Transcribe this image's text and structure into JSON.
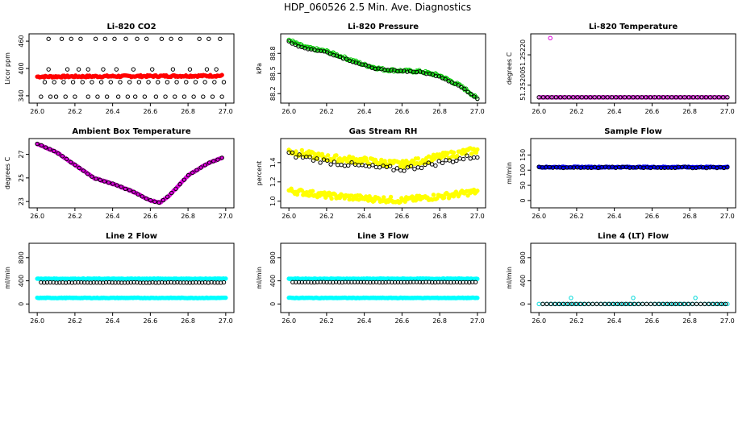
{
  "page": {
    "title": "HDP_060526  2.5 Min. Ave. Diagnostics"
  },
  "chart_data": [
    {
      "id": "co2",
      "type": "scatter",
      "title": "Li-820 CO2",
      "ylabel": "Licor ppm",
      "xlim": [
        26.0,
        27.0
      ],
      "ylim": [
        330,
        470
      ],
      "x_ticks": [
        "26.0",
        "26.2",
        "26.4",
        "26.6",
        "26.8",
        "27.0"
      ],
      "y_ticks": [
        {
          "v": 340,
          "label": "340"
        },
        {
          "v": 400,
          "label": "400"
        },
        {
          "v": 460,
          "label": "460"
        }
      ],
      "series": [
        {
          "name": "red",
          "color": "#ff0000",
          "filled": true,
          "kind": "flat",
          "from": 26.0,
          "to": 26.98,
          "y0": 382,
          "y1": 384,
          "noise": 2,
          "n": 160
        },
        {
          "name": "black",
          "color": "#000000",
          "filled": false,
          "kind": "points",
          "x": [
            26.02,
            26.07,
            26.1,
            26.15,
            26.2,
            26.27,
            26.32,
            26.37,
            26.43,
            26.48,
            26.52,
            26.57,
            26.63,
            26.68,
            26.73,
            26.78,
            26.83,
            26.88,
            26.93,
            26.98,
            26.04,
            26.09,
            26.14,
            26.19,
            26.24,
            26.29,
            26.34,
            26.39,
            26.44,
            26.49,
            26.54,
            26.59,
            26.64,
            26.69,
            26.74,
            26.79,
            26.84,
            26.89,
            26.94,
            26.99,
            26.06,
            26.13,
            26.18,
            26.23,
            26.31,
            26.36,
            26.41,
            26.47,
            26.53,
            26.58,
            26.66,
            26.71,
            26.76,
            26.86,
            26.91,
            26.97
          ],
          "y": [
            338,
            338,
            338,
            338,
            338,
            338,
            338,
            338,
            338,
            338,
            338,
            338,
            338,
            338,
            338,
            338,
            338,
            338,
            338,
            338,
            370,
            370,
            370,
            370,
            370,
            370,
            370,
            370,
            370,
            370,
            370,
            370,
            370,
            370,
            370,
            370,
            370,
            370,
            370,
            370,
            465,
            465,
            465,
            465,
            465,
            465,
            465,
            465,
            465,
            465,
            465,
            465,
            465,
            465,
            465,
            465
          ]
        },
        {
          "name": "black-mid",
          "color": "#000000",
          "filled": false,
          "kind": "points",
          "x": [
            26.06,
            26.16,
            26.22,
            26.27,
            26.35,
            26.42,
            26.51,
            26.61,
            26.72,
            26.81,
            26.9,
            26.95
          ],
          "y": [
            398,
            398,
            398,
            398,
            398,
            398,
            398,
            398,
            398,
            398,
            398,
            398
          ]
        }
      ]
    },
    {
      "id": "pressure",
      "type": "scatter",
      "title": "Li-820 Pressure",
      "ylabel": "kPa",
      "xlim": [
        26.0,
        27.0
      ],
      "ylim": [
        88.1,
        89.05
      ],
      "x_ticks": [
        "26.0",
        "26.2",
        "26.4",
        "26.6",
        "26.8",
        "27.0"
      ],
      "y_ticks": [
        {
          "v": 88.2,
          "label": "88.2"
        },
        {
          "v": 88.5,
          "label": "88.5"
        },
        {
          "v": 88.8,
          "label": "88.8"
        }
      ],
      "series": [
        {
          "name": "green",
          "color": "#00cc00",
          "filled": false,
          "kind": "curve",
          "knots": [
            [
              26.0,
              89.0
            ],
            [
              26.05,
              88.93
            ],
            [
              26.1,
              88.88
            ],
            [
              26.2,
              88.83
            ],
            [
              26.3,
              88.73
            ],
            [
              26.4,
              88.63
            ],
            [
              26.5,
              88.56
            ],
            [
              26.6,
              88.54
            ],
            [
              26.7,
              88.53
            ],
            [
              26.8,
              88.47
            ],
            [
              26.9,
              88.33
            ],
            [
              26.95,
              88.24
            ],
            [
              27.0,
              88.12
            ]
          ],
          "noise": 0.02,
          "n": 150
        },
        {
          "name": "black",
          "color": "#000000",
          "filled": false,
          "kind": "curve",
          "knots": [
            [
              26.0,
              88.98
            ],
            [
              26.05,
              88.91
            ],
            [
              26.1,
              88.87
            ],
            [
              26.2,
              88.82
            ],
            [
              26.3,
              88.72
            ],
            [
              26.4,
              88.62
            ],
            [
              26.5,
              88.55
            ],
            [
              26.6,
              88.54
            ],
            [
              26.7,
              88.52
            ],
            [
              26.8,
              88.46
            ],
            [
              26.9,
              88.32
            ],
            [
              26.95,
              88.23
            ],
            [
              27.0,
              88.13
            ]
          ],
          "noise": 0.01,
          "n": 60
        }
      ]
    },
    {
      "id": "licor_temp",
      "type": "scatter",
      "title": "Li-820 Temperature",
      "ylabel": "degrees C",
      "xlim": [
        26.0,
        27.0
      ],
      "ylim": [
        51.2519,
        51.25232
      ],
      "x_ticks": [
        "26.0",
        "26.2",
        "26.4",
        "26.6",
        "26.8",
        "27.0"
      ],
      "y_ticks": [
        {
          "v": 51.252,
          "label": "51.25200"
        },
        {
          "v": 51.2522,
          "label": "51.25220"
        }
      ],
      "series": [
        {
          "name": "magenta",
          "color": "#dd00dd",
          "filled": false,
          "kind": "flat",
          "from": 26.0,
          "to": 27.0,
          "y0": 51.25192,
          "y1": 51.25192,
          "noise": 0,
          "n": 120
        },
        {
          "name": "black",
          "color": "#000000",
          "filled": false,
          "kind": "flat",
          "from": 26.0,
          "to": 27.0,
          "y0": 51.25192,
          "y1": 51.25192,
          "noise": 0,
          "n": 45
        },
        {
          "name": "outlier",
          "color": "#dd00dd",
          "filled": false,
          "kind": "points",
          "x": [
            26.06
          ],
          "y": [
            51.25231
          ]
        }
      ]
    },
    {
      "id": "ambient_temp",
      "type": "scatter",
      "title": "Ambient Box Temperature",
      "ylabel": "degrees C",
      "xlim": [
        26.0,
        27.0
      ],
      "ylim": [
        22.7,
        28.1
      ],
      "x_ticks": [
        "26.0",
        "26.2",
        "26.4",
        "26.6",
        "26.8",
        "27.0"
      ],
      "y_ticks": [
        {
          "v": 23,
          "label": "23"
        },
        {
          "v": 25,
          "label": "25"
        },
        {
          "v": 27,
          "label": "27"
        }
      ],
      "series": [
        {
          "name": "magenta",
          "color": "#dd00dd",
          "filled": true,
          "kind": "curve",
          "knots": [
            [
              26.0,
              27.9
            ],
            [
              26.1,
              27.2
            ],
            [
              26.2,
              26.1
            ],
            [
              26.3,
              25.0
            ],
            [
              26.4,
              24.5
            ],
            [
              26.5,
              23.9
            ],
            [
              26.6,
              23.1
            ],
            [
              26.65,
              22.9
            ],
            [
              26.7,
              23.5
            ],
            [
              26.8,
              25.2
            ],
            [
              26.9,
              26.2
            ],
            [
              26.98,
              26.7
            ]
          ],
          "noise": 0.03,
          "n": 150
        },
        {
          "name": "black",
          "color": "#000000",
          "filled": false,
          "kind": "curve",
          "knots": [
            [
              26.0,
              27.9
            ],
            [
              26.1,
              27.2
            ],
            [
              26.2,
              26.1
            ],
            [
              26.3,
              25.0
            ],
            [
              26.4,
              24.5
            ],
            [
              26.5,
              23.9
            ],
            [
              26.6,
              23.1
            ],
            [
              26.65,
              22.9
            ],
            [
              26.7,
              23.5
            ],
            [
              26.8,
              25.2
            ],
            [
              26.9,
              26.2
            ],
            [
              26.98,
              26.7
            ]
          ],
          "noise": 0.02,
          "n": 45
        }
      ]
    },
    {
      "id": "rh",
      "type": "scatter",
      "title": "Gas Stream RH",
      "ylabel": "percent",
      "xlim": [
        26.0,
        27.0
      ],
      "ylim": [
        0.96,
        1.62
      ],
      "x_ticks": [
        "26.0",
        "26.2",
        "26.4",
        "26.6",
        "26.8",
        "27.0"
      ],
      "y_ticks": [
        {
          "v": 1.0,
          "label": "1.0"
        },
        {
          "v": 1.2,
          "label": "1.2"
        },
        {
          "v": 1.4,
          "label": "1.4"
        }
      ],
      "series": [
        {
          "name": "yellow-high",
          "color": "#ffff00",
          "filled": true,
          "kind": "curve",
          "knots": [
            [
              26.0,
              1.52
            ],
            [
              26.2,
              1.45
            ],
            [
              26.4,
              1.42
            ],
            [
              26.6,
              1.38
            ],
            [
              26.8,
              1.46
            ],
            [
              27.0,
              1.53
            ]
          ],
          "noise": 0.035,
          "n": 160
        },
        {
          "name": "yellow-low",
          "color": "#ffff00",
          "filled": true,
          "kind": "curve",
          "knots": [
            [
              26.0,
              1.11
            ],
            [
              26.2,
              1.06
            ],
            [
              26.4,
              1.03
            ],
            [
              26.6,
              1.01
            ],
            [
              26.8,
              1.05
            ],
            [
              27.0,
              1.1
            ]
          ],
          "noise": 0.03,
          "n": 160
        },
        {
          "name": "black",
          "color": "#000000",
          "filled": false,
          "kind": "curve",
          "knots": [
            [
              26.0,
              1.49
            ],
            [
              26.2,
              1.41
            ],
            [
              26.4,
              1.36
            ],
            [
              26.6,
              1.33
            ],
            [
              26.8,
              1.4
            ],
            [
              27.0,
              1.47
            ]
          ],
          "noise": 0.025,
          "n": 55
        }
      ]
    },
    {
      "id": "sample_flow",
      "type": "scatter",
      "title": "Sample Flow",
      "ylabel": "ml/min",
      "xlim": [
        26.0,
        27.0
      ],
      "ylim": [
        -15,
        195
      ],
      "x_ticks": [
        "26.0",
        "26.2",
        "26.4",
        "26.6",
        "26.8",
        "27.0"
      ],
      "y_ticks": [
        {
          "v": 0,
          "label": "0"
        },
        {
          "v": 50,
          "label": "50"
        },
        {
          "v": 100,
          "label": "100"
        },
        {
          "v": 150,
          "label": "150"
        }
      ],
      "series": [
        {
          "name": "blue",
          "color": "#0000ff",
          "filled": true,
          "kind": "flat",
          "from": 26.0,
          "to": 27.0,
          "y0": 110,
          "y1": 110,
          "noise": 1.5,
          "n": 180
        },
        {
          "name": "black",
          "color": "#000000",
          "filled": false,
          "kind": "flat",
          "from": 26.0,
          "to": 27.0,
          "y0": 109,
          "y1": 109,
          "noise": 2,
          "n": 55
        }
      ]
    },
    {
      "id": "line2",
      "type": "scatter",
      "title": "Line 2 Flow",
      "ylabel": "ml/min",
      "xlim": [
        26.0,
        27.0
      ],
      "ylim": [
        -100,
        1000
      ],
      "x_ticks": [
        "26.0",
        "26.2",
        "26.4",
        "26.6",
        "26.8",
        "27.0"
      ],
      "y_ticks": [
        {
          "v": 0,
          "label": "0"
        },
        {
          "v": 400,
          "label": "400"
        },
        {
          "v": 800,
          "label": "800"
        }
      ],
      "series": [
        {
          "name": "cyan-high",
          "color": "#00ffff",
          "filled": true,
          "kind": "flat",
          "from": 26.0,
          "to": 27.0,
          "y0": 435,
          "y1": 435,
          "noise": 5,
          "n": 180
        },
        {
          "name": "cyan-low",
          "color": "#00ffff",
          "filled": true,
          "kind": "flat",
          "from": 26.0,
          "to": 27.0,
          "y0": 105,
          "y1": 105,
          "noise": 5,
          "n": 180
        },
        {
          "name": "black",
          "color": "#000000",
          "filled": false,
          "kind": "flat",
          "from": 26.02,
          "to": 26.99,
          "y0": 370,
          "y1": 370,
          "noise": 3,
          "n": 60
        }
      ]
    },
    {
      "id": "line3",
      "type": "scatter",
      "title": "Line 3 Flow",
      "ylabel": "ml/min",
      "xlim": [
        26.0,
        27.0
      ],
      "ylim": [
        -100,
        1000
      ],
      "x_ticks": [
        "26.0",
        "26.2",
        "26.4",
        "26.6",
        "26.8",
        "27.0"
      ],
      "y_ticks": [
        {
          "v": 0,
          "label": "0"
        },
        {
          "v": 400,
          "label": "400"
        },
        {
          "v": 800,
          "label": "800"
        }
      ],
      "series": [
        {
          "name": "cyan-high",
          "color": "#00ffff",
          "filled": true,
          "kind": "flat",
          "from": 26.0,
          "to": 27.0,
          "y0": 435,
          "y1": 435,
          "noise": 5,
          "n": 180
        },
        {
          "name": "cyan-low",
          "color": "#00ffff",
          "filled": true,
          "kind": "flat",
          "from": 26.0,
          "to": 27.0,
          "y0": 105,
          "y1": 105,
          "noise": 5,
          "n": 180
        },
        {
          "name": "black",
          "color": "#000000",
          "filled": false,
          "kind": "flat",
          "from": 26.02,
          "to": 26.99,
          "y0": 375,
          "y1": 375,
          "noise": 3,
          "n": 60
        }
      ]
    },
    {
      "id": "line4",
      "type": "scatter",
      "title": "Line 4 (LT) Flow",
      "ylabel": "ml/min",
      "xlim": [
        26.0,
        27.0
      ],
      "ylim": [
        -100,
        1000
      ],
      "x_ticks": [
        "26.0",
        "26.2",
        "26.4",
        "26.6",
        "26.8",
        "27.0"
      ],
      "y_ticks": [
        {
          "v": 0,
          "label": "0"
        },
        {
          "v": 400,
          "label": "400"
        },
        {
          "v": 800,
          "label": "800"
        }
      ],
      "series": [
        {
          "name": "cyan",
          "color": "#00d8d8",
          "filled": false,
          "kind": "flat",
          "from": 26.0,
          "to": 27.0,
          "y0": 0,
          "y1": 0,
          "noise": 0,
          "n": 50
        },
        {
          "name": "cyan-spikes",
          "color": "#00d8d8",
          "filled": false,
          "kind": "points",
          "x": [
            26.17,
            26.5,
            26.83
          ],
          "y": [
            105,
            105,
            105
          ]
        },
        {
          "name": "black",
          "color": "#000000",
          "filled": false,
          "kind": "flat",
          "from": 26.02,
          "to": 26.99,
          "y0": 0,
          "y1": 0,
          "noise": 0,
          "n": 45
        }
      ]
    }
  ]
}
